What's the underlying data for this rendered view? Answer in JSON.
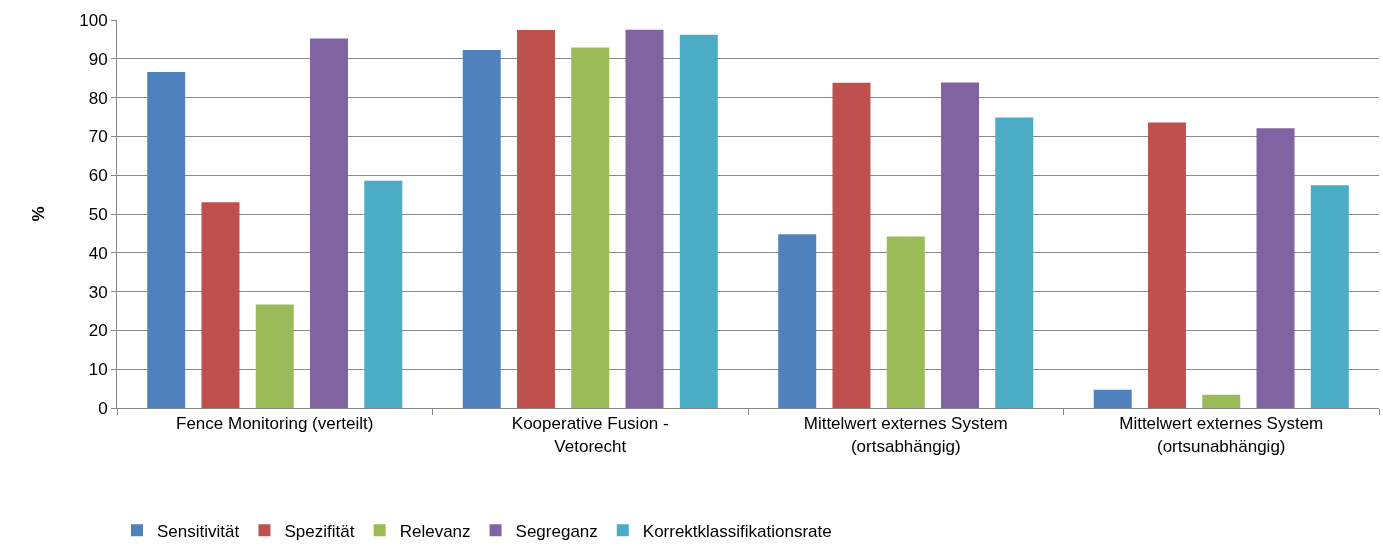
{
  "chart_data": {
    "type": "bar",
    "ylabel": "%",
    "categories": [
      "Fence Monitoring (verteilt)",
      "Kooperative Fusion - Vetorecht",
      "Mittelwert externes System (ortsabhängig)",
      "Mittelwert externes System (ortsunabhängig)"
    ],
    "series": [
      {
        "name": "Sensitivität",
        "color": "#4f81bd",
        "values": [
          86.6,
          92.3,
          44.8,
          4.7
        ]
      },
      {
        "name": "Spezifität",
        "color": "#c0504d",
        "values": [
          53.0,
          97.4,
          83.8,
          73.6
        ]
      },
      {
        "name": "Relevanz",
        "color": "#9bbb59",
        "values": [
          26.7,
          92.9,
          44.2,
          3.4
        ]
      },
      {
        "name": "Segreganz",
        "color": "#8064a2",
        "values": [
          95.2,
          97.5,
          83.9,
          72.1
        ]
      },
      {
        "name": "Korrektklassifikationsrate",
        "color": "#4bacc6",
        "values": [
          58.6,
          96.2,
          74.9,
          57.4
        ]
      }
    ],
    "ylim": [
      0,
      100
    ],
    "yticks": [
      0,
      10,
      20,
      30,
      40,
      50,
      60,
      70,
      80,
      90,
      100
    ],
    "grid": "y",
    "legend": "bottom"
  }
}
